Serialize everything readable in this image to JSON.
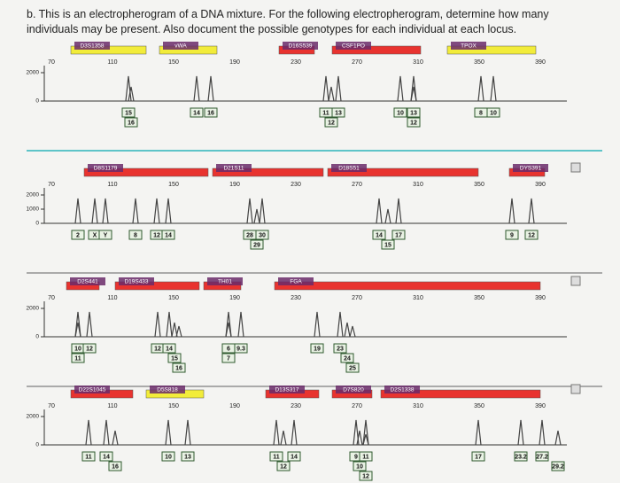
{
  "question": "b. This is an electropherogram of a DNA mixture. For the following electropherogram, determine how many individuals may be present. Also document the possible genotypes for each individual at each locus.",
  "panels": [
    {
      "loci": [
        "D3S1358",
        "vWA",
        "D16S539",
        "CSF1PO",
        "TPOX"
      ],
      "x_labels": [
        "70",
        "110",
        "150",
        "190",
        "230",
        "270",
        "310",
        "350",
        "390"
      ],
      "y_labels": [
        "2000",
        "0"
      ],
      "alleles": [
        "15",
        "16",
        "14",
        "16",
        "11",
        "13",
        "12",
        "10",
        "13",
        "12",
        "8",
        "10"
      ]
    },
    {
      "loci": [
        "D8S1179",
        "D21S11",
        "D18S51",
        "DYS391"
      ],
      "x_labels": [
        "70",
        "110",
        "150",
        "190",
        "230",
        "270",
        "310",
        "350",
        "390"
      ],
      "y_labels": [
        "2000",
        "1000",
        "0"
      ],
      "alleles": [
        "2",
        "X",
        "Y",
        "8",
        "12",
        "14",
        "28",
        "30",
        "29",
        "14",
        "17",
        "15",
        "9",
        "12"
      ]
    },
    {
      "loci": [
        "D2S441",
        "D19S433",
        "TH01",
        "FGA"
      ],
      "x_labels": [
        "70",
        "110",
        "150",
        "190",
        "230",
        "270",
        "310",
        "350",
        "390"
      ],
      "y_labels": [
        "2000",
        "0"
      ],
      "alleles": [
        "10",
        "12",
        "11",
        "12",
        "14",
        "15",
        "16",
        "6",
        "9.3",
        "7",
        "19",
        "23",
        "24",
        "25"
      ]
    },
    {
      "loci": [
        "D22S1045",
        "D5S818",
        "D13S317",
        "D7S820",
        "D2S1338"
      ],
      "x_labels": [
        "70",
        "110",
        "150",
        "190",
        "230",
        "270",
        "310",
        "350",
        "390"
      ],
      "y_labels": [
        "2000",
        "0"
      ],
      "alleles": [
        "11",
        "14",
        "16",
        "10",
        "13",
        "11",
        "14",
        "12",
        "9",
        "11",
        "10",
        "12",
        "17",
        "23.2",
        "27.2",
        "29.2"
      ]
    }
  ]
}
